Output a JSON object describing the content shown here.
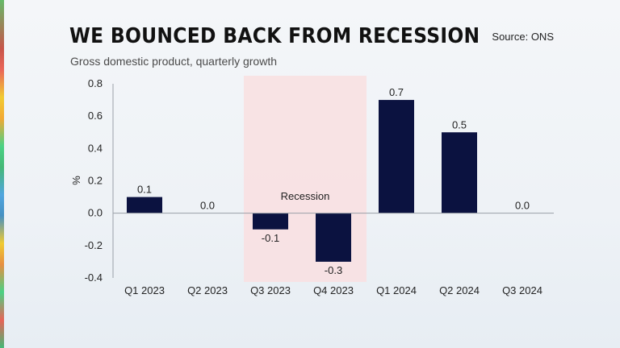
{
  "header": {
    "title": "WE BOUNCED BACK FROM RECESSION",
    "subtitle": "Gross domestic product, quarterly growth",
    "source": "Source: ONS"
  },
  "chart_data": {
    "type": "bar",
    "categories": [
      "Q1 2023",
      "Q2 2023",
      "Q3 2023",
      "Q4 2023",
      "Q1 2024",
      "Q2 2024",
      "Q3 2024"
    ],
    "values": [
      0.1,
      0.0,
      -0.1,
      -0.3,
      0.7,
      0.5,
      0.0
    ],
    "value_labels": [
      "0.1",
      "0.0",
      "-0.1",
      "-0.3",
      "0.7",
      "0.5",
      "0.0"
    ],
    "ylabel": "%",
    "ylim": [
      -0.4,
      0.8
    ],
    "y_ticks": [
      0.8,
      0.6,
      0.4,
      0.2,
      0.0,
      -0.2,
      -0.4
    ],
    "y_tick_labels": [
      "0.8",
      "0.6",
      "0.4",
      "0.2",
      "0.0",
      "-0.2",
      "-0.4"
    ],
    "grid": false,
    "annotation": {
      "label": "Recession",
      "from_category": "Q3 2023",
      "to_category": "Q4 2023"
    },
    "colors": {
      "bar": "#0b1240",
      "recession_band": "#f9dfe0",
      "axis": "#9aa0a8",
      "text": "#222222"
    }
  }
}
